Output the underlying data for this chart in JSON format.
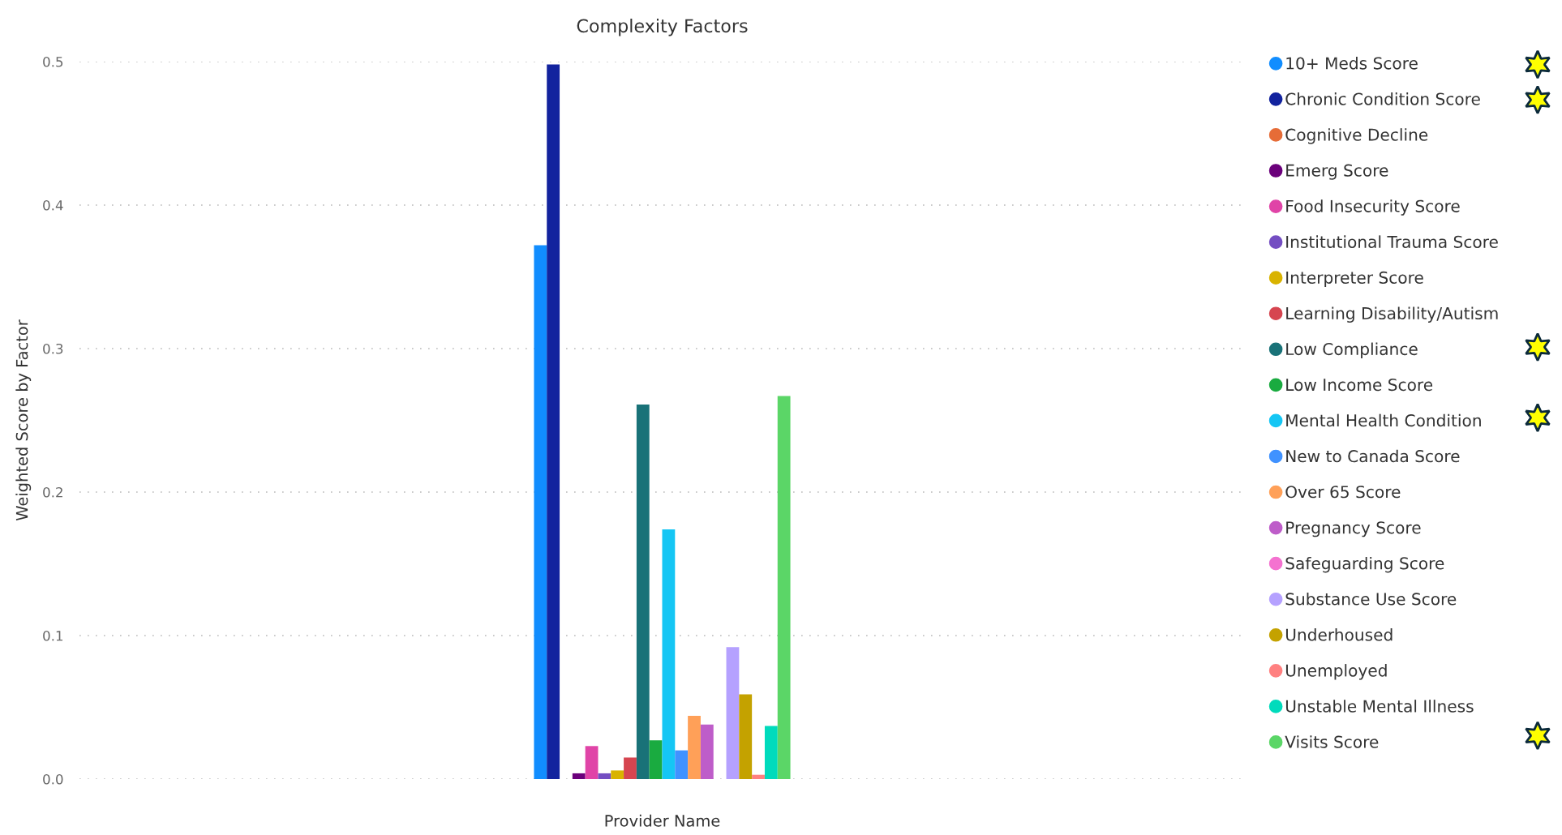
{
  "chart_data": {
    "type": "bar",
    "title": "Complexity Factors",
    "xlabel": "Provider Name",
    "ylabel": "Weighted Score by Factor",
    "categories": [
      null
    ],
    "series": [
      {
        "name": "10+ Meds Score",
        "color": "#118dff",
        "values": [
          0.372
        ]
      },
      {
        "name": "Chronic Condition Score",
        "color": "#12239e",
        "values": [
          0.498
        ]
      },
      {
        "name": "Cognitive Decline",
        "color": "#e66c37",
        "values": [
          0
        ]
      },
      {
        "name": "Emerg Score",
        "color": "#6b007b",
        "values": [
          0.004
        ]
      },
      {
        "name": "Food Insecurity Score",
        "color": "#e044a7",
        "values": [
          0.023
        ]
      },
      {
        "name": "Institutional Trauma Score",
        "color": "#744ec2",
        "values": [
          0.004
        ]
      },
      {
        "name": "Interpreter Score",
        "color": "#d9b300",
        "values": [
          0.006
        ]
      },
      {
        "name": "Learning Disability/Autism",
        "color": "#d64550",
        "values": [
          0.015
        ]
      },
      {
        "name": "Low Compliance",
        "color": "#197278",
        "values": [
          0.261
        ]
      },
      {
        "name": "Low Income Score",
        "color": "#1aab40",
        "values": [
          0.027
        ]
      },
      {
        "name": "Mental Health Condition",
        "color": "#15c6f4",
        "values": [
          0.174
        ]
      },
      {
        "name": "New to Canada Score",
        "color": "#4092ff",
        "values": [
          0.02
        ]
      },
      {
        "name": "Over 65 Score",
        "color": "#ffa058",
        "values": [
          0.044
        ]
      },
      {
        "name": "Pregnancy Score",
        "color": "#be5dc9",
        "values": [
          0.038
        ]
      },
      {
        "name": "Safeguarding Score",
        "color": "#f472d0",
        "values": [
          0
        ]
      },
      {
        "name": "Substance Use Score",
        "color": "#b5a1ff",
        "values": [
          0.092
        ]
      },
      {
        "name": "Underhoused",
        "color": "#c4a200",
        "values": [
          0.059
        ]
      },
      {
        "name": "Unemployed",
        "color": "#ff8080",
        "values": [
          0.003
        ]
      },
      {
        "name": "Unstable Mental Illness",
        "color": "#00dbbc",
        "values": [
          0.037
        ]
      },
      {
        "name": "Visits Score",
        "color": "#5bd667",
        "values": [
          0.267
        ]
      }
    ],
    "ylim": [
      0,
      0.5
    ],
    "yticks": [
      {
        "value": 0,
        "label": "0.0"
      },
      0.1,
      0.2,
      0.3,
      0.4,
      0.5
    ],
    "grid": "y",
    "legend": "right"
  }
}
